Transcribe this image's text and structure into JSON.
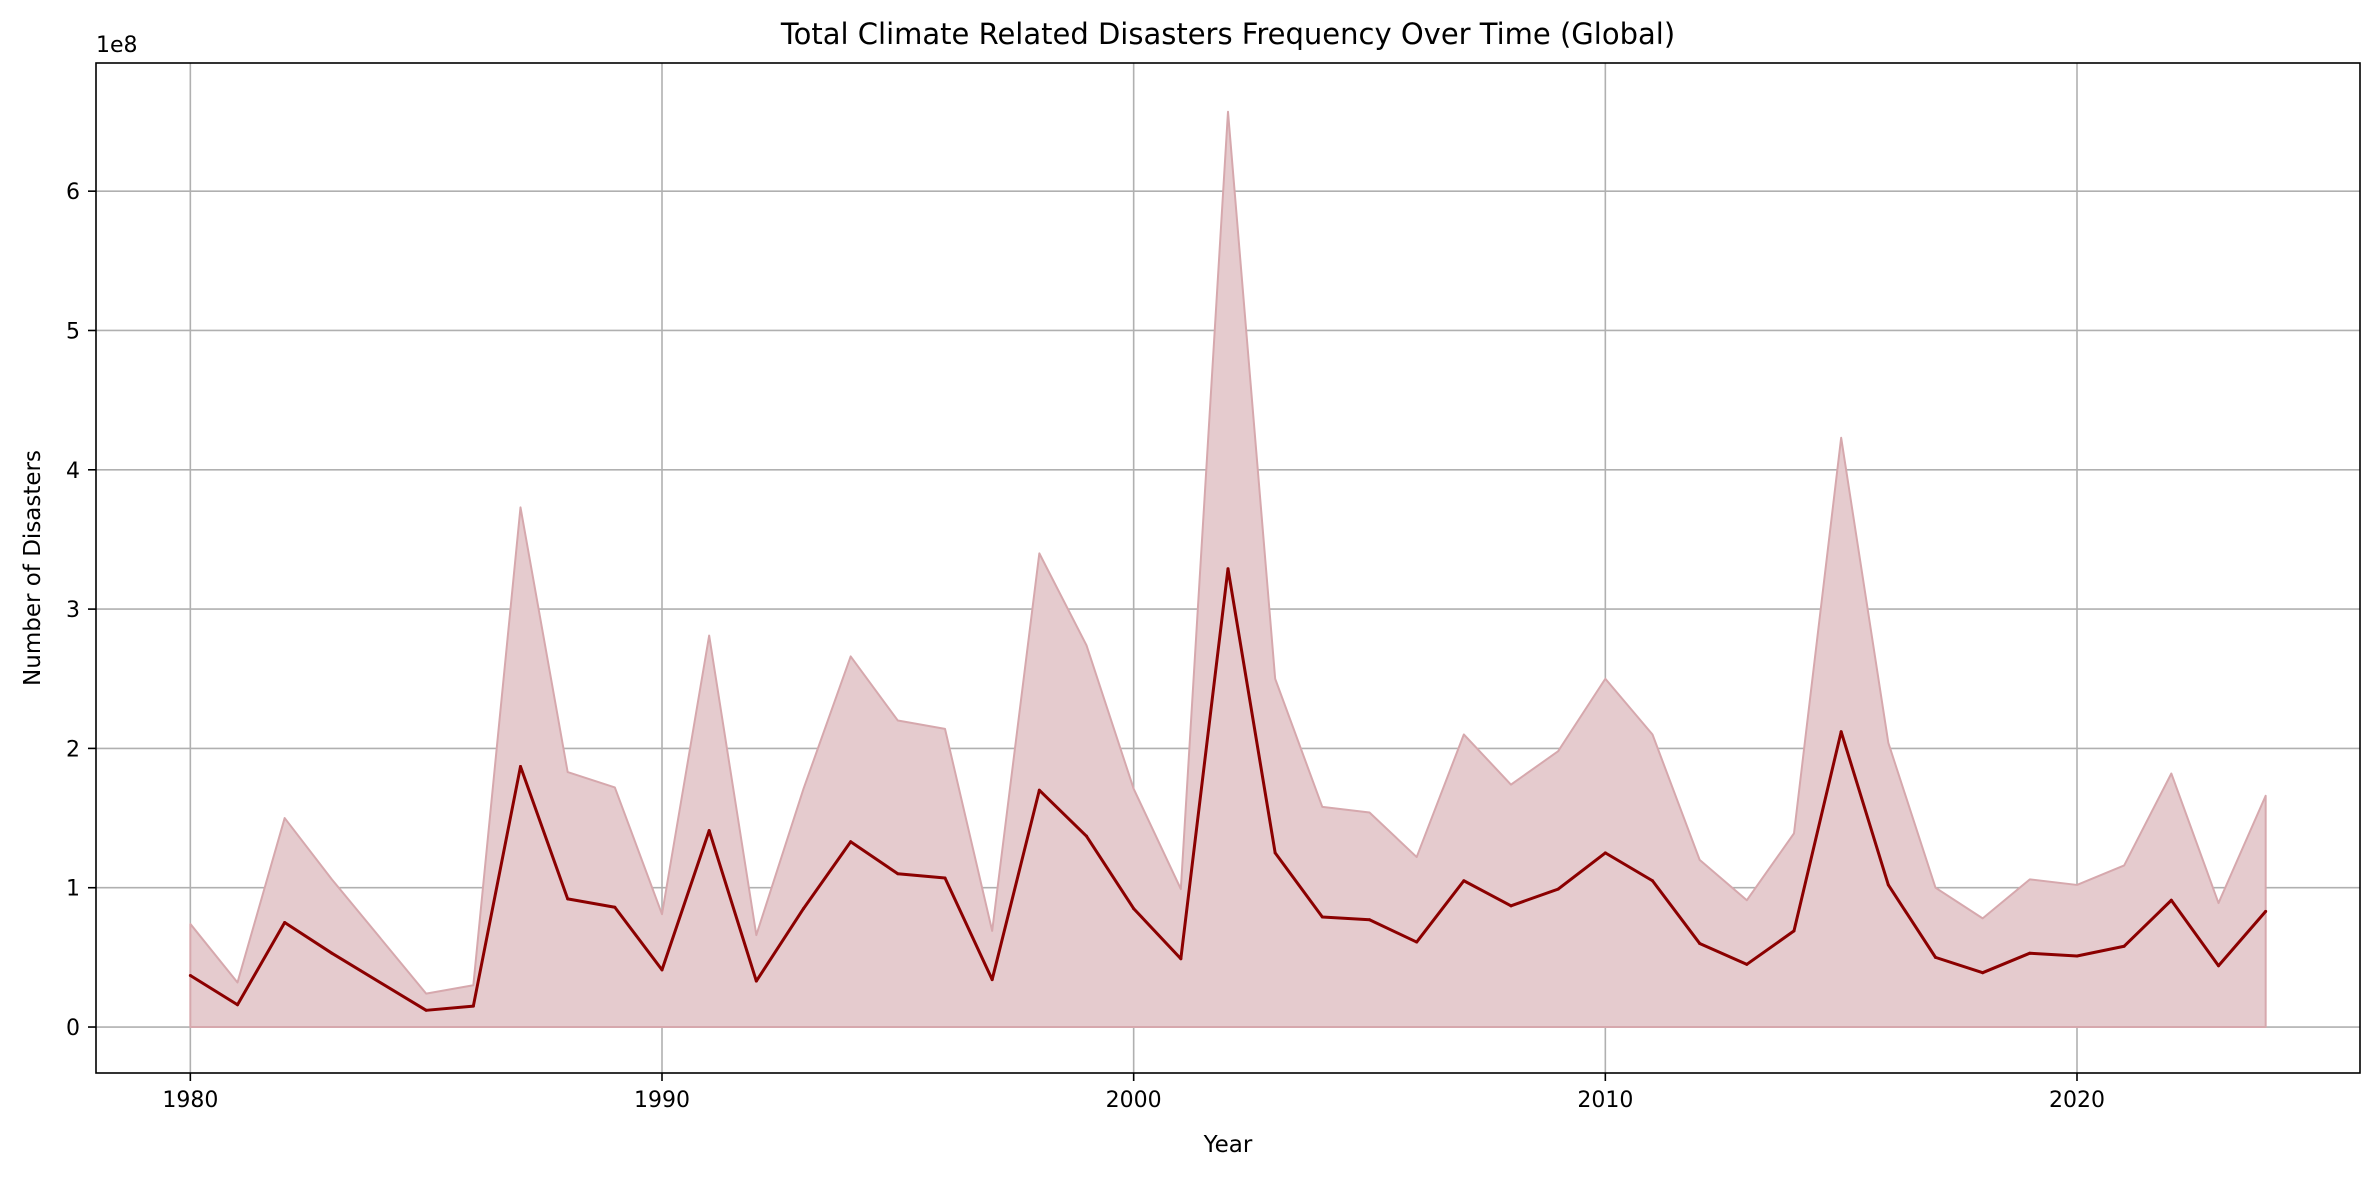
{
  "chart_data": {
    "type": "area",
    "title": "Total Climate Related Disasters Frequency Over Time (Global)",
    "xlabel": "Year",
    "ylabel": "Number of Disasters",
    "y_offset_label": "1e8",
    "xlim": [
      1978,
      2026
    ],
    "ylim": [
      -0.33,
      6.92
    ],
    "x_ticks": [
      1980,
      1990,
      2000,
      2010,
      2020
    ],
    "x_tick_labels": [
      "1980",
      "1990",
      "2000",
      "2010",
      "2020"
    ],
    "y_ticks": [
      0,
      1,
      2,
      3,
      4,
      5,
      6
    ],
    "y_tick_labels": [
      "0",
      "1",
      "2",
      "3",
      "4",
      "5",
      "6"
    ],
    "grid": true,
    "y_scale_note": "values in units of 1e8",
    "x": [
      1980,
      1981,
      1982,
      1983,
      1985,
      1986,
      1987,
      1988,
      1989,
      1990,
      1991,
      1992,
      1993,
      1994,
      1995,
      1996,
      1997,
      1998,
      1999,
      2000,
      2001,
      2002,
      2003,
      2004,
      2005,
      2006,
      2007,
      2008,
      2009,
      2010,
      2011,
      2012,
      2013,
      2014,
      2015,
      2016,
      2017,
      2018,
      2019,
      2020,
      2021,
      2022,
      2023,
      2024
    ],
    "series": [
      {
        "values": [
          0.37,
          0.16,
          0.75,
          0.53,
          0.12,
          0.15,
          1.87,
          0.92,
          0.86,
          0.41,
          1.41,
          0.33,
          0.85,
          1.33,
          1.1,
          1.07,
          0.34,
          1.7,
          1.37,
          0.85,
          0.49,
          3.29,
          1.25,
          0.79,
          0.77,
          0.61,
          1.05,
          0.87,
          0.99,
          1.25,
          1.05,
          0.6,
          0.45,
          0.69,
          2.12,
          1.02,
          0.5,
          0.39,
          0.53,
          0.51,
          0.58,
          0.91,
          0.44,
          0.83
        ],
        "color": "#8b0000"
      }
    ],
    "band_upper": [
      0.74,
      0.32,
      1.5,
      1.06,
      0.24,
      0.3,
      3.73,
      1.83,
      1.72,
      0.81,
      2.81,
      0.66,
      1.71,
      2.66,
      2.2,
      2.14,
      0.69,
      3.4,
      2.74,
      1.71,
      0.99,
      6.57,
      2.5,
      1.58,
      1.54,
      1.22,
      2.1,
      1.74,
      1.98,
      2.5,
      2.1,
      1.2,
      0.91,
      1.39,
      4.23,
      2.04,
      1.0,
      0.78,
      1.06,
      1.02,
      1.16,
      1.82,
      0.89,
      1.66
    ],
    "band_lower": 0,
    "band_color": "#e5cbce",
    "band_edge_color": "#d6a8ad"
  }
}
